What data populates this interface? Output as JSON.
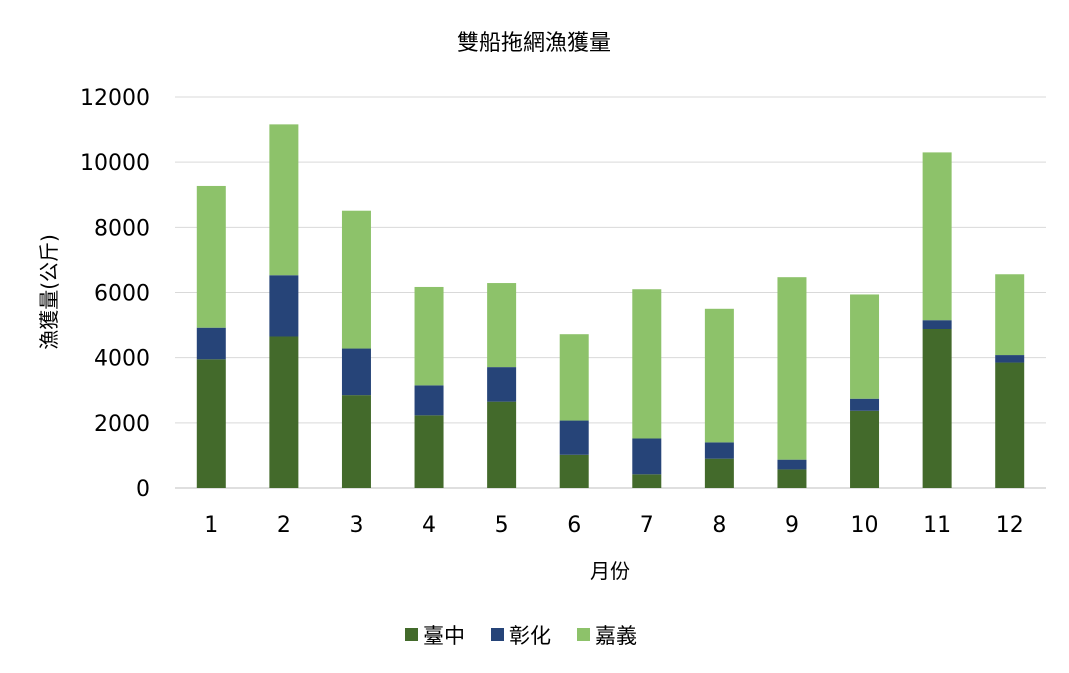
{
  "chart_data": {
    "type": "bar",
    "stacked": true,
    "title": "雙船拖網漁獲量",
    "xlabel": "月份",
    "ylabel": "漁獲量(公斤)",
    "categories": [
      "1",
      "2",
      "3",
      "4",
      "5",
      "6",
      "7",
      "8",
      "9",
      "10",
      "11",
      "12"
    ],
    "ylim": [
      0,
      12000
    ],
    "yticks": [
      "0",
      "2000",
      "4000",
      "6000",
      "8000",
      "10000",
      "12000"
    ],
    "grid": true,
    "legend_position": "bottom",
    "series": [
      {
        "name": "臺中",
        "color": "#436a2b",
        "values": [
          3950,
          4650,
          2850,
          2230,
          2650,
          1020,
          420,
          900,
          570,
          2370,
          4880,
          3850
        ]
      },
      {
        "name": "彰化",
        "color": "#264478",
        "values": [
          970,
          1880,
          1430,
          920,
          1060,
          1050,
          1100,
          500,
          300,
          370,
          270,
          230
        ]
      },
      {
        "name": "嘉義",
        "color": "#8dc26a",
        "values": [
          4350,
          4630,
          4230,
          3020,
          2580,
          2650,
          4580,
          4100,
          5600,
          3200,
          5150,
          2480
        ]
      }
    ]
  }
}
